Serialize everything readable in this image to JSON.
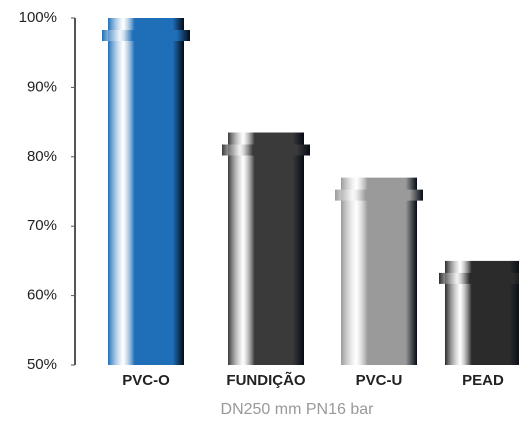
{
  "chart_data": {
    "type": "bar",
    "categories": [
      "PVC-O",
      "FUNDIÇÃO",
      "PVC-U",
      "PEAD"
    ],
    "values": [
      100,
      83.5,
      77,
      65
    ],
    "colors": [
      "#1f6fb8",
      "#3a3a3a",
      "#9a9a9a",
      "#2b2b2b"
    ],
    "ylim": [
      50,
      100
    ],
    "yticks": [
      {
        "value": 50,
        "label": "50%"
      },
      {
        "value": 60,
        "label": "60%"
      },
      {
        "value": 70,
        "label": "70%"
      },
      {
        "value": 80,
        "label": "80%"
      },
      {
        "value": 90,
        "label": "90%"
      },
      {
        "value": 100,
        "label": "100%"
      }
    ],
    "x_label": "DN250 mm PN16 bar",
    "grid": false
  }
}
